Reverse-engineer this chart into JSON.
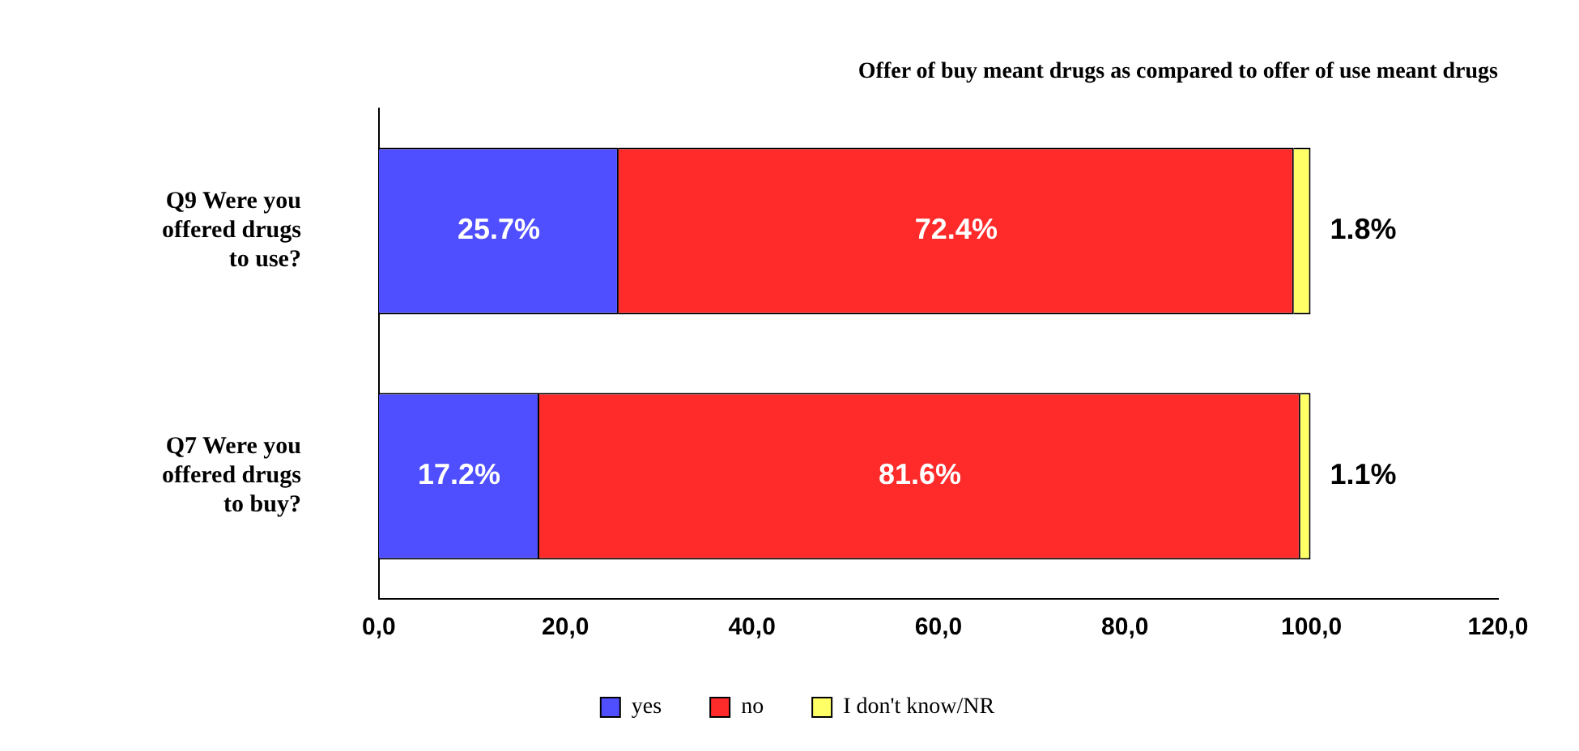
{
  "chart_data": {
    "type": "bar",
    "orientation": "horizontal",
    "stacked": true,
    "title": "Offer of buy meant drugs as compared to offer of use meant drugs",
    "categories": [
      "Q9 Were you offered drugs to use?",
      "Q7 Were you offered drugs to buy?"
    ],
    "series": [
      {
        "name": "yes",
        "color": "#4f4fff",
        "values": [
          25.7,
          17.2
        ],
        "value_labels": [
          "25.7%",
          "17.2%"
        ]
      },
      {
        "name": "no",
        "color": "#ff2a2a",
        "values": [
          72.4,
          81.6
        ],
        "value_labels": [
          "72.4%",
          "81.6%"
        ]
      },
      {
        "name": "I don't know/NR",
        "color": "#ffff66",
        "values": [
          1.8,
          1.1
        ],
        "value_labels": [
          "1.8%",
          "1.1%"
        ]
      }
    ],
    "xlim": [
      0,
      120
    ],
    "xticks": [
      {
        "value": 0,
        "label": "0,0"
      },
      {
        "value": 20,
        "label": "20,0"
      },
      {
        "value": 40,
        "label": "40,0"
      },
      {
        "value": 60,
        "label": "60,0"
      },
      {
        "value": 80,
        "label": "80,0"
      },
      {
        "value": 100,
        "label": "100,0"
      },
      {
        "value": 120,
        "label": "120,0"
      }
    ],
    "grid": false,
    "legend": "bottom"
  }
}
